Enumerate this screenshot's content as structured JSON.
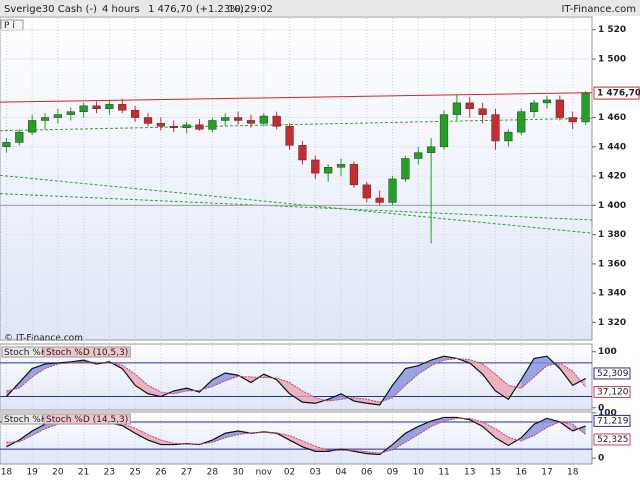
{
  "chart_data": [
    {
      "type": "candlestick",
      "title": "Sverige30 Cash (-)",
      "interval": "4 hours",
      "change": "1 476,70 (+1.23%)",
      "time": "10:29:02",
      "watermark": "IT-Finance.com",
      "copyright": "© IT-Finance.com",
      "toolbar": "P i",
      "categories": [
        "18",
        null,
        "19",
        null,
        "20",
        null,
        "21",
        null,
        "23",
        null,
        "25",
        null,
        "26",
        null,
        "27",
        null,
        "28",
        null,
        "30",
        null,
        "nov",
        null,
        "02",
        null,
        "03",
        null,
        "04",
        null,
        "06",
        null,
        "09",
        null,
        "10",
        null,
        "11",
        null,
        "13",
        null,
        "15",
        null,
        "16",
        null,
        "17",
        null,
        "18",
        null
      ],
      "open": [
        1440,
        1443,
        1450,
        1458,
        1460,
        1462,
        1464,
        1468,
        1466,
        1469,
        1465,
        1460,
        1456,
        1454,
        1453,
        1455,
        1452,
        1458,
        1460,
        1458,
        1456,
        1461,
        1454,
        1441,
        1431,
        1422,
        1426,
        1428,
        1414,
        1405,
        1402,
        1418,
        1432,
        1436,
        1440,
        1462,
        1470,
        1466,
        1462,
        1444,
        1450,
        1464,
        1470,
        1472,
        1460,
        1457
      ],
      "high": [
        1446,
        1452,
        1462,
        1463,
        1466,
        1467,
        1470,
        1471,
        1472,
        1473,
        1468,
        1463,
        1460,
        1458,
        1457,
        1459,
        1460,
        1463,
        1464,
        1462,
        1463,
        1464,
        1456,
        1444,
        1434,
        1428,
        1432,
        1430,
        1416,
        1410,
        1420,
        1434,
        1440,
        1446,
        1465,
        1476,
        1474,
        1470,
        1466,
        1452,
        1466,
        1472,
        1475,
        1475,
        1464,
        1478
      ],
      "low": [
        1436,
        1441,
        1448,
        1452,
        1456,
        1458,
        1460,
        1463,
        1462,
        1463,
        1457,
        1454,
        1451,
        1450,
        1449,
        1451,
        1450,
        1454,
        1455,
        1453,
        1454,
        1452,
        1438,
        1428,
        1418,
        1416,
        1420,
        1412,
        1402,
        1400,
        1400,
        1416,
        1428,
        1374,
        1438,
        1458,
        1460,
        1456,
        1438,
        1440,
        1448,
        1460,
        1466,
        1458,
        1452,
        1455
      ],
      "close": [
        1443,
        1450,
        1458,
        1460,
        1462,
        1464,
        1468,
        1466,
        1469,
        1465,
        1460,
        1456,
        1454,
        1453,
        1455,
        1452,
        1458,
        1460,
        1458,
        1456,
        1461,
        1454,
        1441,
        1431,
        1422,
        1426,
        1428,
        1414,
        1405,
        1402,
        1418,
        1432,
        1436,
        1440,
        1462,
        1470,
        1466,
        1462,
        1444,
        1450,
        1464,
        1470,
        1472,
        1460,
        1457,
        1476.7
      ],
      "last_label": "1 476,70",
      "up_color": "#22a022",
      "down_color": "#cc2a2a",
      "lines": [
        {
          "values": [
            1470.5,
            1477
          ],
          "color": "#e02020",
          "dash": false
        },
        {
          "values": [
            1451,
            1459.5
          ],
          "color": "#3aa03a",
          "dash": true
        },
        {
          "values": [
            1408,
            1390
          ],
          "color": "#3aa03a",
          "dash": true
        },
        {
          "values": [
            1420.5,
            1381
          ],
          "color": "#3aa03a",
          "dash": true
        },
        {
          "values": [
            1400,
            1400
          ],
          "color": "#a0a0a0",
          "dash": false
        }
      ],
      "ylim": [
        1308,
        1528
      ],
      "yticks": [
        {
          "value": 1520,
          "label": "1 520"
        },
        {
          "value": 1500,
          "label": "1 500"
        },
        {
          "value": 1460,
          "label": "1 460"
        },
        {
          "value": 1440,
          "label": "1 440"
        },
        {
          "value": 1420,
          "label": "1 420"
        },
        {
          "value": 1400,
          "label": "1 400"
        },
        {
          "value": 1380,
          "label": "1 380"
        },
        {
          "value": 1360,
          "label": "1 360"
        },
        {
          "value": 1340,
          "label": "1 340"
        },
        {
          "value": 1320,
          "label": "1 320"
        }
      ],
      "grid": true
    },
    {
      "type": "stochastic",
      "series": [
        {
          "name": "Stoch %K",
          "color": "#111111",
          "last_label": "52,309",
          "values": [
            20,
            45,
            70,
            78,
            80,
            82,
            85,
            78,
            82,
            70,
            40,
            25,
            20,
            30,
            35,
            28,
            50,
            62,
            58,
            45,
            60,
            50,
            25,
            10,
            8,
            15,
            25,
            12,
            8,
            5,
            40,
            70,
            75,
            85,
            92,
            88,
            80,
            60,
            30,
            15,
            50,
            88,
            92,
            70,
            40,
            52.309
          ]
        },
        {
          "name": "Stoch %D (10,5,3)",
          "color": "#d04060",
          "last_label": "37,120",
          "values": [
            30,
            35,
            55,
            70,
            78,
            80,
            82,
            81,
            80,
            76,
            60,
            40,
            28,
            25,
            30,
            31,
            38,
            48,
            56,
            55,
            54,
            53,
            45,
            30,
            18,
            12,
            15,
            18,
            15,
            10,
            18,
            40,
            60,
            75,
            85,
            88,
            86,
            78,
            60,
            40,
            35,
            55,
            75,
            80,
            65,
            37.12
          ]
        }
      ],
      "fill_colors": [
        "#7f8fe0",
        "#eaa4b4"
      ],
      "levels": [
        20,
        80
      ],
      "level_color": "#2030a0",
      "ylim": [
        -4,
        112
      ],
      "yticks": [
        0,
        100
      ]
    },
    {
      "type": "stochastic",
      "series": [
        {
          "name": "Stoch %K",
          "color": "#111111",
          "last_label": "71,219",
          "values": [
            25,
            40,
            60,
            75,
            82,
            85,
            84,
            80,
            78,
            72,
            55,
            40,
            30,
            30,
            32,
            30,
            40,
            55,
            60,
            55,
            58,
            55,
            40,
            25,
            15,
            15,
            20,
            15,
            10,
            8,
            30,
            55,
            70,
            82,
            90,
            90,
            85,
            70,
            45,
            28,
            45,
            75,
            88,
            80,
            60,
            71.219
          ]
        },
        {
          "name": "Stoch %D (14,5,3)",
          "color": "#d04060",
          "last_label": "52,325",
          "values": [
            35,
            36,
            50,
            65,
            75,
            82,
            84,
            82,
            80,
            76,
            66,
            52,
            40,
            33,
            31,
            31,
            35,
            45,
            52,
            56,
            57,
            56,
            50,
            38,
            26,
            18,
            17,
            17,
            14,
            11,
            18,
            35,
            52,
            70,
            82,
            88,
            88,
            80,
            65,
            46,
            38,
            50,
            68,
            80,
            75,
            52.325
          ]
        }
      ],
      "fill_colors": [
        "#7f8fe0",
        "#eaa4b4"
      ],
      "levels": [
        20,
        80
      ],
      "level_color": "#2030a0",
      "ylim": [
        -13,
        102
      ],
      "yticks": [
        0,
        100
      ]
    }
  ]
}
